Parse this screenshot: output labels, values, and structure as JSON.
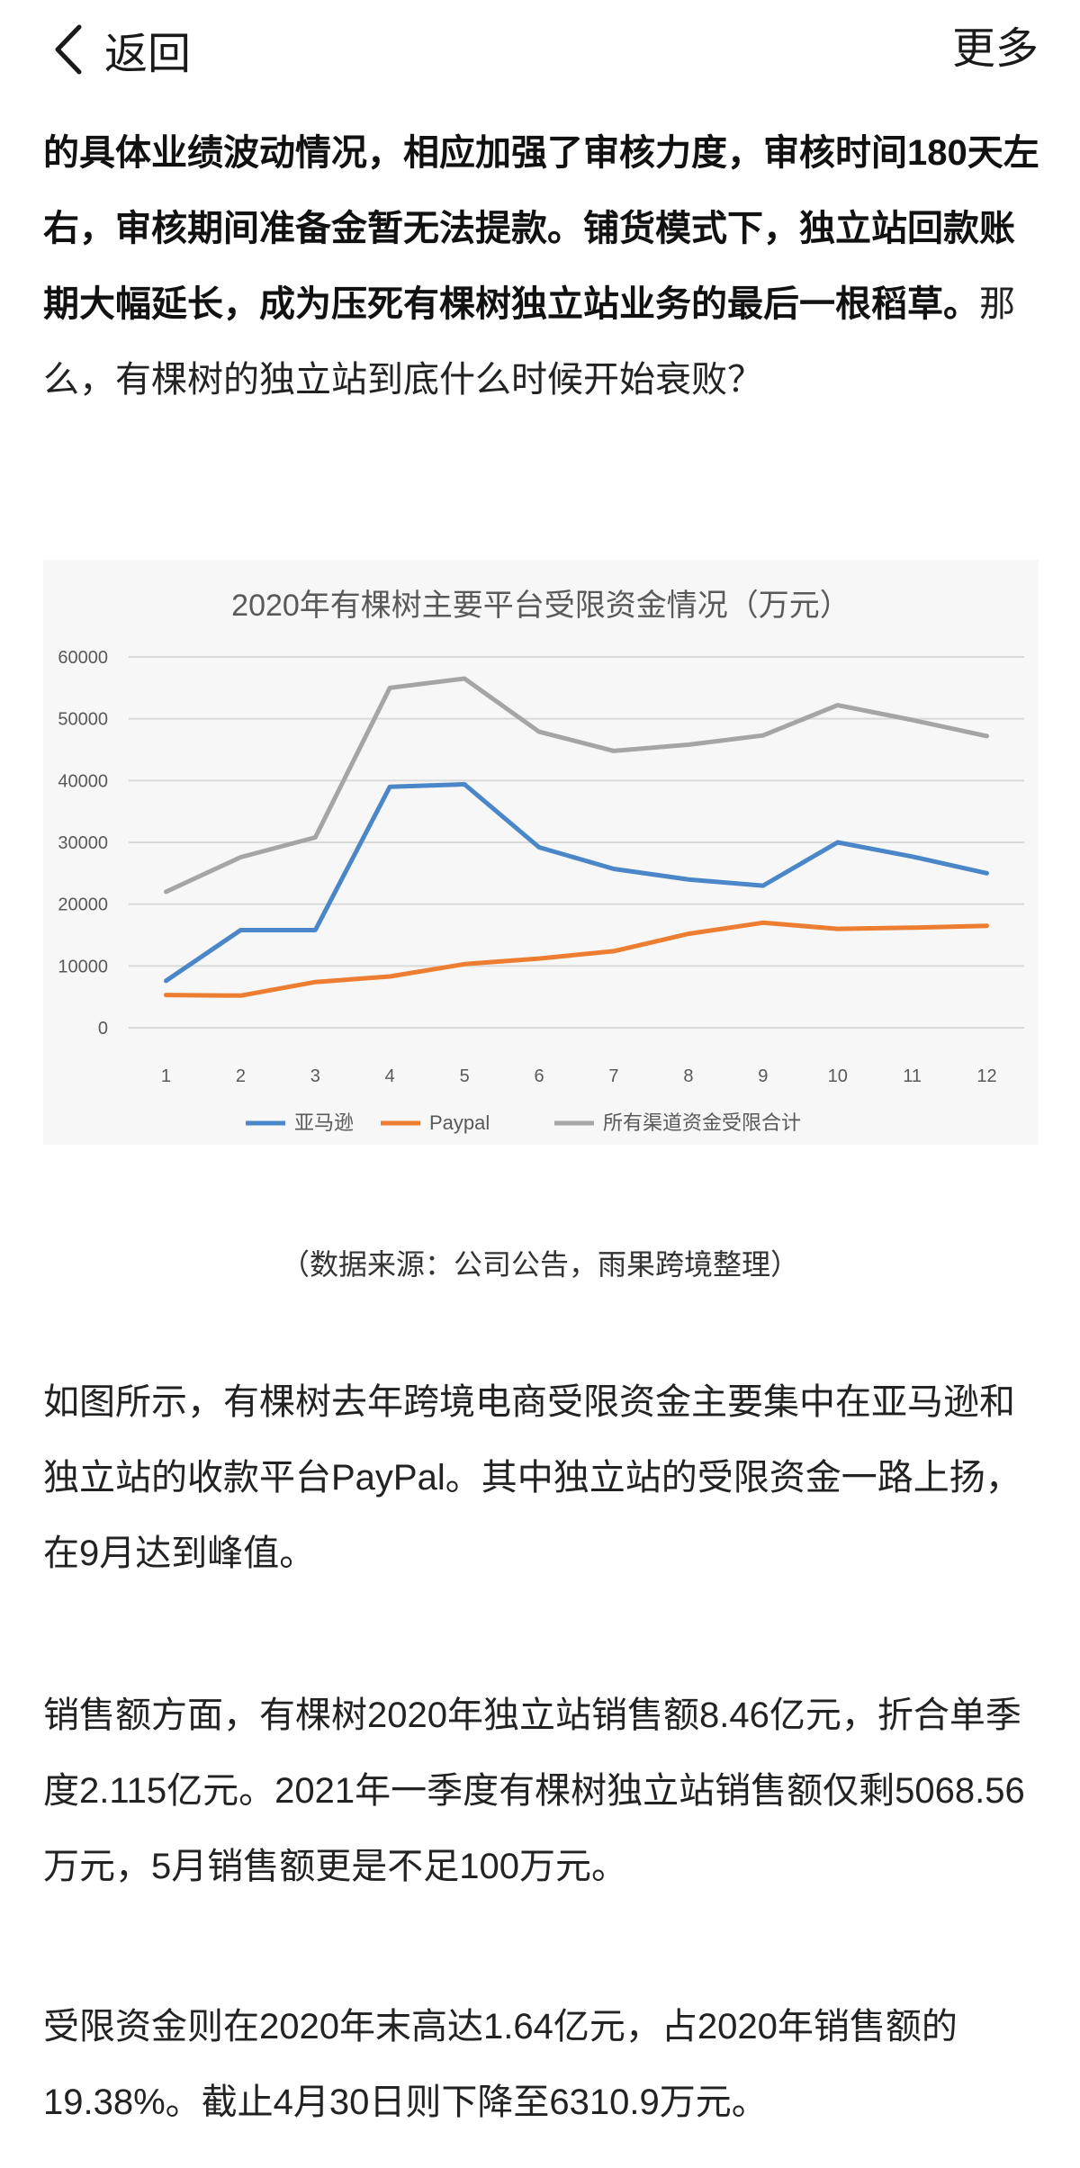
{
  "nav": {
    "back_label": "返回",
    "more_label": "更多"
  },
  "intro": {
    "bold_part": "的具体业绩波动情况，相应加强了审核力度，审核时间180天左右，审核期间准备金暂无法提款。铺货模式下，独立站回款账期大幅延长，成为压死有棵树独立站业务的最后一根稻草。",
    "normal_part": "那么，有棵树的独立站到底什么时候开始衰败？"
  },
  "chart_data": {
    "type": "line",
    "title": "2020年有棵树主要平台受限资金情况（万元）",
    "categories": [
      "1",
      "2",
      "3",
      "4",
      "5",
      "6",
      "7",
      "8",
      "9",
      "10",
      "11",
      "12"
    ],
    "ylim": [
      0,
      60000
    ],
    "yticks": [
      0,
      10000,
      20000,
      30000,
      40000,
      50000,
      60000
    ],
    "grid": true,
    "legend_position": "bottom",
    "series": [
      {
        "name": "亚马逊",
        "color": "#4a86c8",
        "values": [
          7600,
          15800,
          15800,
          39000,
          39400,
          29200,
          25700,
          24000,
          23000,
          30000,
          27700,
          25000
        ]
      },
      {
        "name": "Paypal",
        "color": "#ec7d31",
        "values": [
          5300,
          5200,
          7400,
          8300,
          10300,
          11200,
          12400,
          15200,
          17000,
          16000,
          16200,
          16500
        ]
      },
      {
        "name": "所有渠道资金受限合计",
        "color": "#a5a5a5",
        "values": [
          22000,
          27600,
          30800,
          55000,
          56500,
          47900,
          44800,
          45800,
          47300,
          52200,
          49800,
          47200
        ]
      }
    ]
  },
  "caption": "（数据来源：公司公告，雨果跨境整理）",
  "paragraphs": [
    "如图所示，有棵树去年跨境电商受限资金主要集中在亚马逊和独立站的收款平台PayPal。其中独立站的受限资金一路上扬，在9月达到峰值。",
    "销售额方面，有棵树2020年独立站销售额8.46亿元，折合单季度2.115亿元。2021年一季度有棵树独立站销售额仅剩5068.56万元，5月销售额更是不足100万元。",
    "受限资金则在2020年末高达1.64亿元，占2020年销售额的19.38%。截止4月30日则下降至6310.9万元。"
  ]
}
